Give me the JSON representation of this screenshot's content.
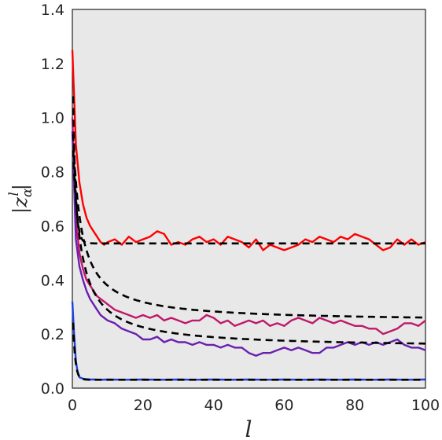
{
  "chart_data": {
    "type": "line",
    "xlabel": "l",
    "ylabel": "|z",
    "ylabel_sup": "l",
    "ylabel_sub": "α",
    "ylabel_close": "|",
    "xlim": [
      0,
      100
    ],
    "ylim": [
      0,
      1.4
    ],
    "xticks": [
      0,
      20,
      40,
      60,
      80,
      100
    ],
    "yticks": [
      0.0,
      0.2,
      0.4,
      0.6,
      0.8,
      1.0,
      1.2,
      1.4
    ],
    "ytick_labels": [
      "0.0",
      "0.2",
      "0.4",
      "0.6",
      "0.8",
      "1.0",
      "1.2",
      "1.4"
    ],
    "xtick_labels": [
      "0",
      "20",
      "40",
      "60",
      "80",
      "100"
    ],
    "grid": false,
    "background": "#e8e8e8",
    "series": [
      {
        "color": "#ff0000",
        "x": [
          0,
          1,
          2,
          3,
          4,
          5,
          6,
          7,
          8,
          9,
          10,
          12,
          14,
          16,
          18,
          20,
          22,
          24,
          26,
          28,
          30,
          32,
          34,
          36,
          38,
          40,
          42,
          44,
          46,
          48,
          50,
          52,
          54,
          56,
          58,
          60,
          62,
          64,
          66,
          68,
          70,
          72,
          74,
          76,
          78,
          80,
          82,
          84,
          86,
          88,
          90,
          92,
          94,
          96,
          98,
          100
        ],
        "values": [
          1.25,
          0.9,
          0.76,
          0.68,
          0.63,
          0.6,
          0.58,
          0.56,
          0.54,
          0.53,
          0.54,
          0.55,
          0.53,
          0.56,
          0.54,
          0.55,
          0.56,
          0.58,
          0.57,
          0.53,
          0.54,
          0.53,
          0.55,
          0.56,
          0.54,
          0.55,
          0.53,
          0.56,
          0.55,
          0.54,
          0.52,
          0.55,
          0.51,
          0.53,
          0.52,
          0.51,
          0.52,
          0.53,
          0.55,
          0.54,
          0.56,
          0.55,
          0.54,
          0.56,
          0.55,
          0.57,
          0.56,
          0.55,
          0.53,
          0.51,
          0.52,
          0.55,
          0.53,
          0.55,
          0.53,
          0.54
        ]
      },
      {
        "color": "#c0186a",
        "x": [
          0,
          1,
          2,
          3,
          4,
          5,
          6,
          7,
          8,
          9,
          10,
          12,
          14,
          16,
          18,
          20,
          22,
          24,
          26,
          28,
          30,
          32,
          34,
          36,
          38,
          40,
          42,
          44,
          46,
          48,
          50,
          52,
          54,
          56,
          58,
          60,
          62,
          64,
          66,
          68,
          70,
          72,
          74,
          76,
          78,
          80,
          82,
          84,
          86,
          88,
          90,
          92,
          94,
          96,
          98,
          100
        ],
        "values": [
          1.0,
          0.62,
          0.5,
          0.44,
          0.4,
          0.38,
          0.36,
          0.34,
          0.33,
          0.32,
          0.31,
          0.29,
          0.28,
          0.27,
          0.26,
          0.27,
          0.26,
          0.27,
          0.25,
          0.26,
          0.25,
          0.24,
          0.25,
          0.25,
          0.27,
          0.26,
          0.24,
          0.25,
          0.23,
          0.24,
          0.25,
          0.24,
          0.25,
          0.23,
          0.24,
          0.23,
          0.25,
          0.26,
          0.25,
          0.24,
          0.26,
          0.25,
          0.24,
          0.25,
          0.24,
          0.23,
          0.23,
          0.22,
          0.22,
          0.2,
          0.21,
          0.22,
          0.24,
          0.24,
          0.23,
          0.25
        ]
      },
      {
        "color": "#6a1fb0",
        "x": [
          0,
          1,
          2,
          3,
          4,
          5,
          6,
          7,
          8,
          9,
          10,
          12,
          14,
          16,
          18,
          20,
          22,
          24,
          26,
          28,
          30,
          32,
          34,
          36,
          38,
          40,
          42,
          44,
          46,
          48,
          50,
          52,
          54,
          56,
          58,
          60,
          62,
          64,
          66,
          68,
          70,
          72,
          74,
          76,
          78,
          80,
          82,
          84,
          86,
          88,
          90,
          92,
          94,
          96,
          98,
          100
        ],
        "values": [
          0.95,
          0.55,
          0.45,
          0.4,
          0.36,
          0.33,
          0.31,
          0.29,
          0.27,
          0.26,
          0.25,
          0.24,
          0.22,
          0.21,
          0.2,
          0.18,
          0.18,
          0.19,
          0.17,
          0.18,
          0.17,
          0.17,
          0.16,
          0.17,
          0.16,
          0.16,
          0.15,
          0.16,
          0.15,
          0.15,
          0.13,
          0.12,
          0.13,
          0.13,
          0.14,
          0.15,
          0.14,
          0.15,
          0.14,
          0.13,
          0.13,
          0.15,
          0.15,
          0.16,
          0.17,
          0.16,
          0.17,
          0.16,
          0.17,
          0.16,
          0.17,
          0.18,
          0.16,
          0.15,
          0.15,
          0.14
        ]
      },
      {
        "color": "#1f3fe0",
        "x": [
          0,
          0.5,
          1,
          1.5,
          2,
          3,
          4,
          5,
          6,
          8,
          10,
          15,
          20,
          25,
          30,
          35,
          40,
          45,
          50,
          55,
          60,
          65,
          70,
          75,
          80,
          85,
          90,
          95,
          100
        ],
        "values": [
          0.32,
          0.2,
          0.1,
          0.06,
          0.04,
          0.035,
          0.033,
          0.032,
          0.032,
          0.031,
          0.032,
          0.031,
          0.032,
          0.031,
          0.032,
          0.031,
          0.032,
          0.031,
          0.032,
          0.031,
          0.032,
          0.031,
          0.032,
          0.031,
          0.032,
          0.031,
          0.032,
          0.031,
          0.032
        ]
      }
    ],
    "fits": [
      {
        "color": "#000000",
        "asymptote": 0.535,
        "amplitude": 0.72,
        "decay": 1.4
      },
      {
        "color": "#000000",
        "asymptote": 0.245,
        "amplitude": 0.76,
        "decay": 0.26
      },
      {
        "color": "#000000",
        "asymptote": 0.148,
        "amplitude": 0.8,
        "decay": 0.26
      },
      {
        "color": "#000000",
        "asymptote": 0.031,
        "amplitude": 0.29,
        "decay": 1.6
      }
    ]
  }
}
